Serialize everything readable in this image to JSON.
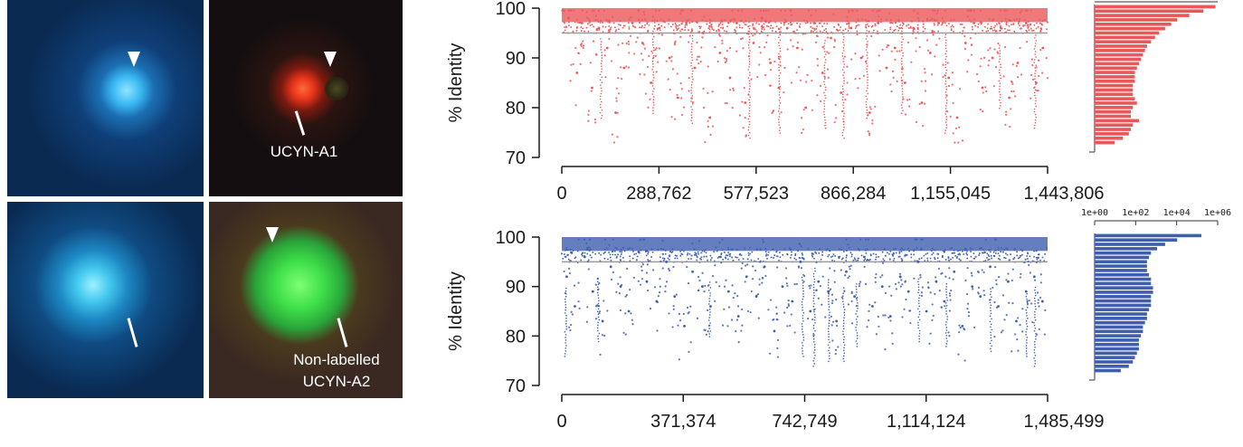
{
  "micrographs": {
    "top_right_label": "UCYN-A1",
    "bottom_right_label_line1": "Non-labelled",
    "bottom_right_label_line2": "UCYN-A2",
    "colors": {
      "blue_bg": "#0a2a52",
      "dark_bg": "#140e10",
      "green_bg": "#3a2822",
      "cell_blue": "#35b6f0",
      "cell_red": "#e8341a",
      "cell_green": "#3fe04a"
    }
  },
  "chart_data": [
    {
      "type": "scatter",
      "ylabel": "% Identity",
      "xlim": [
        0,
        1443806
      ],
      "ylim": [
        70,
        100
      ],
      "xticks": [
        0,
        288762,
        577523,
        866284,
        1155045,
        1443806
      ],
      "xtick_labels": [
        "0",
        "288,762",
        "577,523",
        "866,284",
        "1,155,045",
        "1,443,806"
      ],
      "yticks": [
        70,
        80,
        90,
        100
      ],
      "threshold": 95,
      "color": "#e8585a",
      "points": [
        [
          20000,
          98
        ],
        [
          45000,
          87
        ],
        [
          60000,
          97
        ],
        [
          90000,
          84
        ],
        [
          110000,
          96
        ],
        [
          135000,
          92
        ],
        [
          160000,
          79
        ],
        [
          185000,
          88
        ],
        [
          210000,
          97
        ],
        [
          240000,
          93
        ],
        [
          265000,
          85
        ],
        [
          290000,
          96
        ],
        [
          320000,
          90
        ],
        [
          345000,
          82
        ],
        [
          370000,
          97
        ],
        [
          395000,
          88
        ],
        [
          420000,
          95
        ],
        [
          440000,
          78
        ],
        [
          470000,
          91
        ],
        [
          500000,
          86
        ],
        [
          520000,
          97
        ],
        [
          545000,
          81
        ],
        [
          570000,
          93
        ],
        [
          595000,
          98
        ],
        [
          620000,
          89
        ],
        [
          645000,
          84
        ],
        [
          670000,
          96
        ],
        [
          700000,
          92
        ],
        [
          725000,
          80
        ],
        [
          750000,
          97
        ],
        [
          775000,
          87
        ],
        [
          800000,
          94
        ],
        [
          830000,
          83
        ],
        [
          860000,
          96
        ],
        [
          890000,
          90
        ],
        [
          915000,
          79
        ],
        [
          940000,
          97
        ],
        [
          965000,
          88
        ],
        [
          990000,
          92
        ],
        [
          1020000,
          85
        ],
        [
          1045000,
          96
        ],
        [
          1070000,
          81
        ],
        [
          1095000,
          91
        ],
        [
          1120000,
          97
        ],
        [
          1150000,
          86
        ],
        [
          1175000,
          78
        ],
        [
          1200000,
          93
        ],
        [
          1225000,
          97
        ],
        [
          1250000,
          84
        ],
        [
          1280000,
          90
        ],
        [
          1305000,
          96
        ],
        [
          1330000,
          82
        ],
        [
          1355000,
          89
        ],
        [
          1380000,
          97
        ],
        [
          1410000,
          85
        ],
        [
          1430000,
          92
        ]
      ],
      "vertical_streaks": [
        [
          115000,
          94,
          78
        ],
        [
          270000,
          96,
          79
        ],
        [
          385000,
          95,
          77
        ],
        [
          555000,
          97,
          74
        ],
        [
          645000,
          96,
          75
        ],
        [
          780000,
          94,
          76
        ],
        [
          835000,
          95,
          74
        ],
        [
          905000,
          96,
          78
        ],
        [
          1010000,
          97,
          79
        ],
        [
          1140000,
          95,
          75
        ],
        [
          1300000,
          93,
          80
        ],
        [
          1405000,
          95,
          76
        ]
      ],
      "histogram": {
        "axis_labels": [],
        "bars": [
          6.0,
          5.4,
          4.7,
          4.1,
          3.8,
          3.5,
          3.2,
          3.0,
          2.8,
          2.6,
          2.5,
          2.4,
          2.3,
          2.2,
          2.1,
          2.0,
          2.0,
          2.0,
          1.9,
          1.9,
          1.9,
          2.0,
          2.1,
          1.9,
          1.8,
          1.8,
          2.2,
          1.9,
          1.8,
          1.7,
          1.4,
          1.0
        ]
      }
    },
    {
      "type": "scatter",
      "ylabel": "% Identity",
      "xlim": [
        0,
        1485499
      ],
      "ylim": [
        70,
        100
      ],
      "xticks": [
        0,
        371374,
        742749,
        1114124,
        1485499
      ],
      "xtick_labels": [
        "0",
        "371,374",
        "742,749",
        "1,114,124",
        "1,485,499"
      ],
      "yticks": [
        70,
        80,
        90,
        100
      ],
      "threshold": 95,
      "color": "#3f5fae",
      "points": [
        [
          15000,
          92
        ],
        [
          40000,
          86
        ],
        [
          70000,
          96
        ],
        [
          95000,
          89
        ],
        [
          125000,
          83
        ],
        [
          150000,
          94
        ],
        [
          180000,
          90
        ],
        [
          205000,
          85
        ],
        [
          235000,
          97
        ],
        [
          260000,
          91
        ],
        [
          290000,
          87
        ],
        [
          320000,
          95
        ],
        [
          345000,
          88
        ],
        [
          375000,
          82
        ],
        [
          400000,
          93
        ],
        [
          430000,
          90
        ],
        [
          455000,
          86
        ],
        [
          485000,
          96
        ],
        [
          510000,
          89
        ],
        [
          540000,
          84
        ],
        [
          565000,
          92
        ],
        [
          595000,
          88
        ],
        [
          620000,
          94
        ],
        [
          650000,
          81
        ],
        [
          675000,
          90
        ],
        [
          705000,
          87
        ],
        [
          730000,
          95
        ],
        [
          760000,
          85
        ],
        [
          785000,
          91
        ],
        [
          815000,
          89
        ],
        [
          840000,
          83
        ],
        [
          870000,
          93
        ],
        [
          895000,
          88
        ],
        [
          925000,
          96
        ],
        [
          950000,
          86
        ],
        [
          980000,
          90
        ],
        [
          1005000,
          84
        ],
        [
          1035000,
          92
        ],
        [
          1060000,
          89
        ],
        [
          1090000,
          95
        ],
        [
          1115000,
          85
        ],
        [
          1145000,
          91
        ],
        [
          1170000,
          87
        ],
        [
          1200000,
          93
        ],
        [
          1225000,
          82
        ],
        [
          1255000,
          90
        ],
        [
          1280000,
          88
        ],
        [
          1310000,
          94
        ],
        [
          1335000,
          86
        ],
        [
          1365000,
          91
        ],
        [
          1390000,
          83
        ],
        [
          1420000,
          89
        ],
        [
          1445000,
          92
        ],
        [
          1470000,
          87
        ]
      ],
      "vertical_streaks": [
        [
          10000,
          90,
          76
        ],
        [
          110000,
          92,
          79
        ],
        [
          450000,
          91,
          80
        ],
        [
          735000,
          93,
          76
        ],
        [
          770000,
          94,
          74
        ],
        [
          815000,
          92,
          75
        ],
        [
          860000,
          90,
          75
        ],
        [
          900000,
          91,
          78
        ],
        [
          1090000,
          92,
          79
        ],
        [
          1175000,
          91,
          78
        ],
        [
          1310000,
          90,
          77
        ],
        [
          1420000,
          89,
          76
        ],
        [
          1445000,
          90,
          74
        ]
      ],
      "histogram": {
        "axis_labels": [
          "1e+00",
          "1e+02",
          "1e+04",
          "1e+06"
        ],
        "bars": [
          5.3,
          4.1,
          3.5,
          3.1,
          2.8,
          2.7,
          2.6,
          2.6,
          2.6,
          2.7,
          2.8,
          2.8,
          2.9,
          2.9,
          2.8,
          2.8,
          2.8,
          2.7,
          2.6,
          2.6,
          2.5,
          2.4,
          2.4,
          2.3,
          2.2,
          2.2,
          2.2,
          2.1,
          2.0,
          1.9,
          1.7,
          1.3
        ]
      }
    }
  ]
}
